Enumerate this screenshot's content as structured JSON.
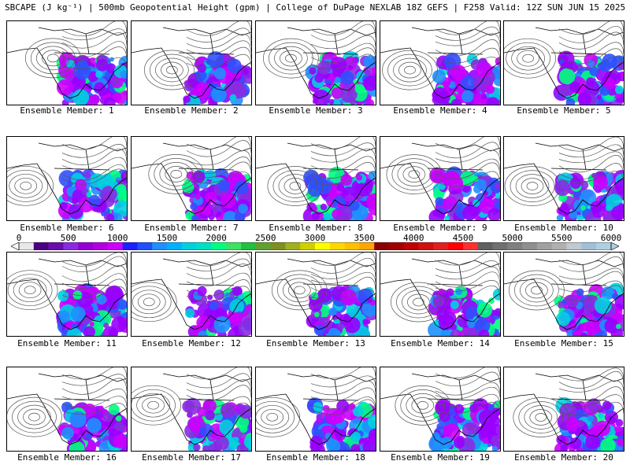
{
  "title": "SBCAPE (J kg⁻¹) | 500mb Geopotential Height (gpm) | College of DuPage NEXLAB 18Z GEFS | F258 Valid: 12Z SUN JUN 15 2025",
  "panels": [
    {
      "label": "Ensemble Member: 1"
    },
    {
      "label": "Ensemble Member: 2"
    },
    {
      "label": "Ensemble Member: 3"
    },
    {
      "label": "Ensemble Member: 4"
    },
    {
      "label": "Ensemble Member: 5"
    },
    {
      "label": "Ensemble Member: 6"
    },
    {
      "label": "Ensemble Member: 7"
    },
    {
      "label": "Ensemble Member: 8"
    },
    {
      "label": "Ensemble Member: 9"
    },
    {
      "label": "Ensemble Member: 10"
    },
    {
      "label": "Ensemble Member: 11"
    },
    {
      "label": "Ensemble Member: 12"
    },
    {
      "label": "Ensemble Member: 13"
    },
    {
      "label": "Ensemble Member: 14"
    },
    {
      "label": "Ensemble Member: 15"
    },
    {
      "label": "Ensemble Member: 16"
    },
    {
      "label": "Ensemble Member: 17"
    },
    {
      "label": "Ensemble Member: 18"
    },
    {
      "label": "Ensemble Member: 19"
    },
    {
      "label": "Ensemble Member: 20"
    }
  ],
  "colorbar": {
    "ticks": [
      "0",
      "500",
      "1000",
      "1500",
      "2000",
      "2500",
      "3000",
      "3500",
      "4000",
      "4500",
      "5000",
      "5500",
      "6000"
    ],
    "colors": [
      "#e8e8e8",
      "#4b0082",
      "#6a0dad",
      "#8a2be2",
      "#9400d3",
      "#b000e0",
      "#cc00ff",
      "#2020ff",
      "#1e50ff",
      "#1e90ff",
      "#00b0ff",
      "#00d0e0",
      "#00e0c0",
      "#00ff80",
      "#40e060",
      "#20c040",
      "#60a030",
      "#809020",
      "#a0b020",
      "#d0d000",
      "#ffff00",
      "#ffd700",
      "#ffc000",
      "#ffa500",
      "#8b0000",
      "#a00000",
      "#c00000",
      "#d01010",
      "#e02020",
      "#ff0000",
      "#ff3030",
      "#606060",
      "#707070",
      "#808080",
      "#909090",
      "#a0a0a0",
      "#b0b0b0",
      "#c0c8d0",
      "#a0c0d8",
      "#b0d0e0"
    ]
  },
  "cape_colors": [
    "#9900ff",
    "#cc00ff",
    "#8a2be2",
    "#3050ff",
    "#1e90ff",
    "#00d0e0",
    "#00ff80"
  ]
}
